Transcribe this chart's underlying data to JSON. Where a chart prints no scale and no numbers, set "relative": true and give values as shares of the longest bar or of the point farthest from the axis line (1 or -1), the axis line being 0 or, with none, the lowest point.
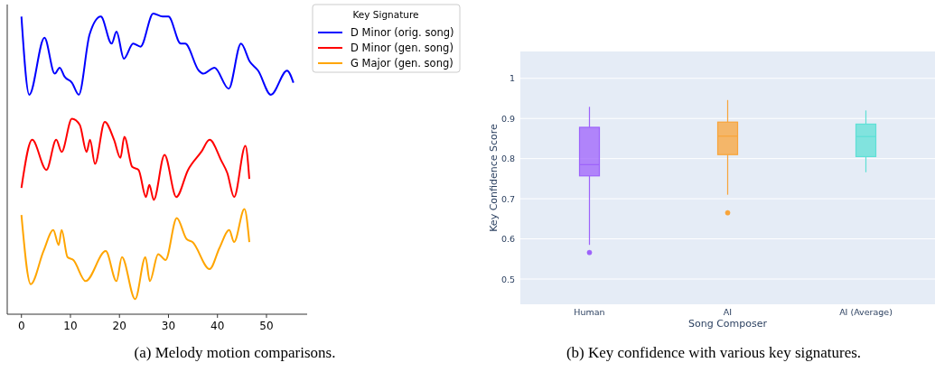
{
  "chart_data": [
    {
      "type": "line",
      "relative": true,
      "xlim": [
        -2.9,
        58.3
      ],
      "xticks": [
        0,
        10,
        20,
        30,
        40,
        50
      ],
      "tick_labels": "x",
      "legend": "top right",
      "legend_title": "Key Signature",
      "annotations": [
        "(a) Melody motion comparisons."
      ],
      "series": [
        {
          "name": "D Minor (orig. song)",
          "color": "#0000ff",
          "x": [
            0,
            1.6,
            4.7,
            6.8,
            7.8,
            8.8,
            10.3,
            11.7,
            13.9,
            16.2,
            18.4,
            19.4,
            20.9,
            22.8,
            24.3,
            26.9,
            28.8,
            30,
            32.5,
            33.4,
            36.2,
            37.1,
            39.4,
            42.3,
            44.8,
            46.6,
            48.3,
            50.9,
            54.2,
            55.5
          ],
          "values": [
            0.99,
            0.73,
            0.92,
            0.8,
            0.82,
            0.79,
            0.77,
            0.73,
            0.93,
            0.99,
            0.9,
            0.94,
            0.85,
            0.9,
            0.89,
            1,
            0.99,
            0.99,
            0.9,
            0.9,
            0.81,
            0.8,
            0.82,
            0.75,
            0.9,
            0.84,
            0.81,
            0.73,
            0.81,
            0.77
          ]
        },
        {
          "name": "D Minor (gen. song)",
          "color": "#ff0000",
          "x": [
            0,
            2.2,
            5.1,
            7.1,
            8.2,
            10.3,
            11.9,
            13.3,
            14,
            15,
            17,
            18.9,
            20.2,
            21,
            22.6,
            23.9,
            25.4,
            26.1,
            27,
            29.2,
            31.6,
            34,
            36.7,
            38.4,
            40.8,
            42,
            43.4,
            45.7,
            46.5
          ],
          "values": [
            0.42,
            0.58,
            0.48,
            0.58,
            0.54,
            0.65,
            0.63,
            0.54,
            0.58,
            0.5,
            0.64,
            0.58,
            0.52,
            0.59,
            0.49,
            0.48,
            0.39,
            0.43,
            0.38,
            0.53,
            0.39,
            0.48,
            0.54,
            0.58,
            0.51,
            0.47,
            0.39,
            0.56,
            0.45
          ]
        },
        {
          "name": "G Major (gen. song)",
          "color": "#ffa500",
          "x": [
            0,
            1.9,
            4.5,
            6.5,
            7.6,
            8.2,
            9.4,
            10.6,
            13.1,
            17.2,
            19.4,
            20.5,
            23.2,
            25.3,
            26.2,
            27.9,
            29.4,
            31.7,
            33.7,
            34.9,
            38.4,
            40.4,
            42.4,
            43.4,
            45.5,
            46.5
          ],
          "values": [
            0.33,
            0.1,
            0.21,
            0.28,
            0.23,
            0.28,
            0.19,
            0.18,
            0.11,
            0.21,
            0.11,
            0.19,
            0.05,
            0.19,
            0.11,
            0.2,
            0.18,
            0.32,
            0.25,
            0.24,
            0.15,
            0.22,
            0.28,
            0.24,
            0.35,
            0.24
          ]
        }
      ]
    },
    {
      "type": "box",
      "categories": [
        "Human",
        "AI",
        "AI (Average)"
      ],
      "xlabel": "Song Composer",
      "ylabel": "Key Confidence Score",
      "ylim": [
        0.437,
        1.067
      ],
      "yticks": [
        0.5,
        0.6,
        0.7,
        0.8,
        0.9,
        1
      ],
      "grid": "y",
      "colors": [
        "#9d62fb",
        "#f8a43a",
        "#5fe0d6"
      ],
      "annotations": [
        "(b) Key confidence with various key signatures."
      ],
      "boxes": [
        {
          "low": 0.585,
          "q1": 0.757,
          "median": 0.785,
          "q3": 0.878,
          "high": 0.929,
          "outliers": [
            0.566
          ]
        },
        {
          "low": 0.71,
          "q1": 0.81,
          "median": 0.856,
          "q3": 0.891,
          "high": 0.946,
          "outliers": [
            0.665
          ]
        },
        {
          "low": 0.766,
          "q1": 0.805,
          "median": 0.855,
          "q3": 0.886,
          "high": 0.92
        }
      ]
    }
  ]
}
